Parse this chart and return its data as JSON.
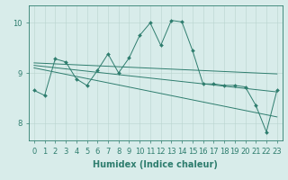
{
  "title": "",
  "xlabel": "Humidex (Indice chaleur)",
  "ylabel": "",
  "xlim": [
    -0.5,
    23.5
  ],
  "ylim": [
    7.65,
    10.35
  ],
  "yticks": [
    8,
    9,
    10
  ],
  "xticks": [
    0,
    1,
    2,
    3,
    4,
    5,
    6,
    7,
    8,
    9,
    10,
    11,
    12,
    13,
    14,
    15,
    16,
    17,
    18,
    19,
    20,
    21,
    22,
    23
  ],
  "bg_color": "#d8ecea",
  "line_color": "#2e7d6e",
  "grid_color": "#b8d4cf",
  "series_main": {
    "x": [
      0,
      1,
      2,
      3,
      4,
      5,
      6,
      7,
      8,
      9,
      10,
      11,
      12,
      13,
      14,
      15,
      16,
      17,
      18,
      19,
      20,
      21,
      22,
      23
    ],
    "y": [
      8.65,
      8.55,
      9.28,
      9.22,
      8.88,
      8.75,
      9.05,
      9.38,
      9.0,
      9.3,
      9.75,
      10.0,
      9.55,
      10.05,
      10.02,
      9.45,
      8.78,
      8.78,
      8.75,
      8.75,
      8.72,
      8.35,
      7.82,
      8.65
    ]
  },
  "trend_lines": [
    {
      "x": [
        0,
        23
      ],
      "y": [
        9.2,
        8.98
      ]
    },
    {
      "x": [
        0,
        23
      ],
      "y": [
        9.15,
        8.62
      ]
    },
    {
      "x": [
        0,
        23
      ],
      "y": [
        9.1,
        8.12
      ]
    }
  ],
  "font_size": 6.5,
  "tick_font_size": 6,
  "xlabel_font_size": 7
}
